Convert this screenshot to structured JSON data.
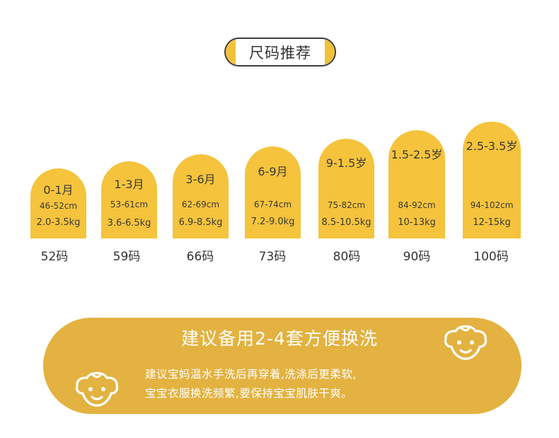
{
  "title": "尺码推荐",
  "sizes": [
    {
      "age": "0-1月",
      "height": "46-52cm",
      "weight": "2.0-3.5kg",
      "size": "52码"
    },
    {
      "age": "1-3月",
      "height": "53-61cm",
      "weight": "3.6-6.5kg",
      "size": "59码"
    },
    {
      "age": "3-6月",
      "height": "62-69cm",
      "weight": "6.9-8.5kg",
      "size": "66码"
    },
    {
      "age": "6-9月",
      "height": "67-74cm",
      "weight": "7.2-9.0kg",
      "size": "73码"
    },
    {
      "age": "9-1.5岁",
      "height": "75-82cm",
      "weight": "8.5-10.5kg",
      "size": "80码"
    },
    {
      "age": "1.5-2.5岁",
      "height": "84-92cm",
      "weight": "10-13kg",
      "size": "90码"
    },
    {
      "age": "2.5-3.5岁",
      "height": "94-102cm",
      "weight": "12-15kg",
      "size": "100码"
    }
  ],
  "banner": {
    "title": "建议备用2-4套方便换洗",
    "line1": "建议宝妈温水手洗后再穿着,洗涤后更柔软,",
    "line2": "宝宝衣服换洗频繁,要保持宝宝肌肤干爽。"
  },
  "colors": {
    "accent": "#f5c33c",
    "banner": "#e3b240",
    "text": "#333333"
  },
  "icons": {
    "left": "baby-face-icon",
    "right": "baby-face-icon"
  }
}
